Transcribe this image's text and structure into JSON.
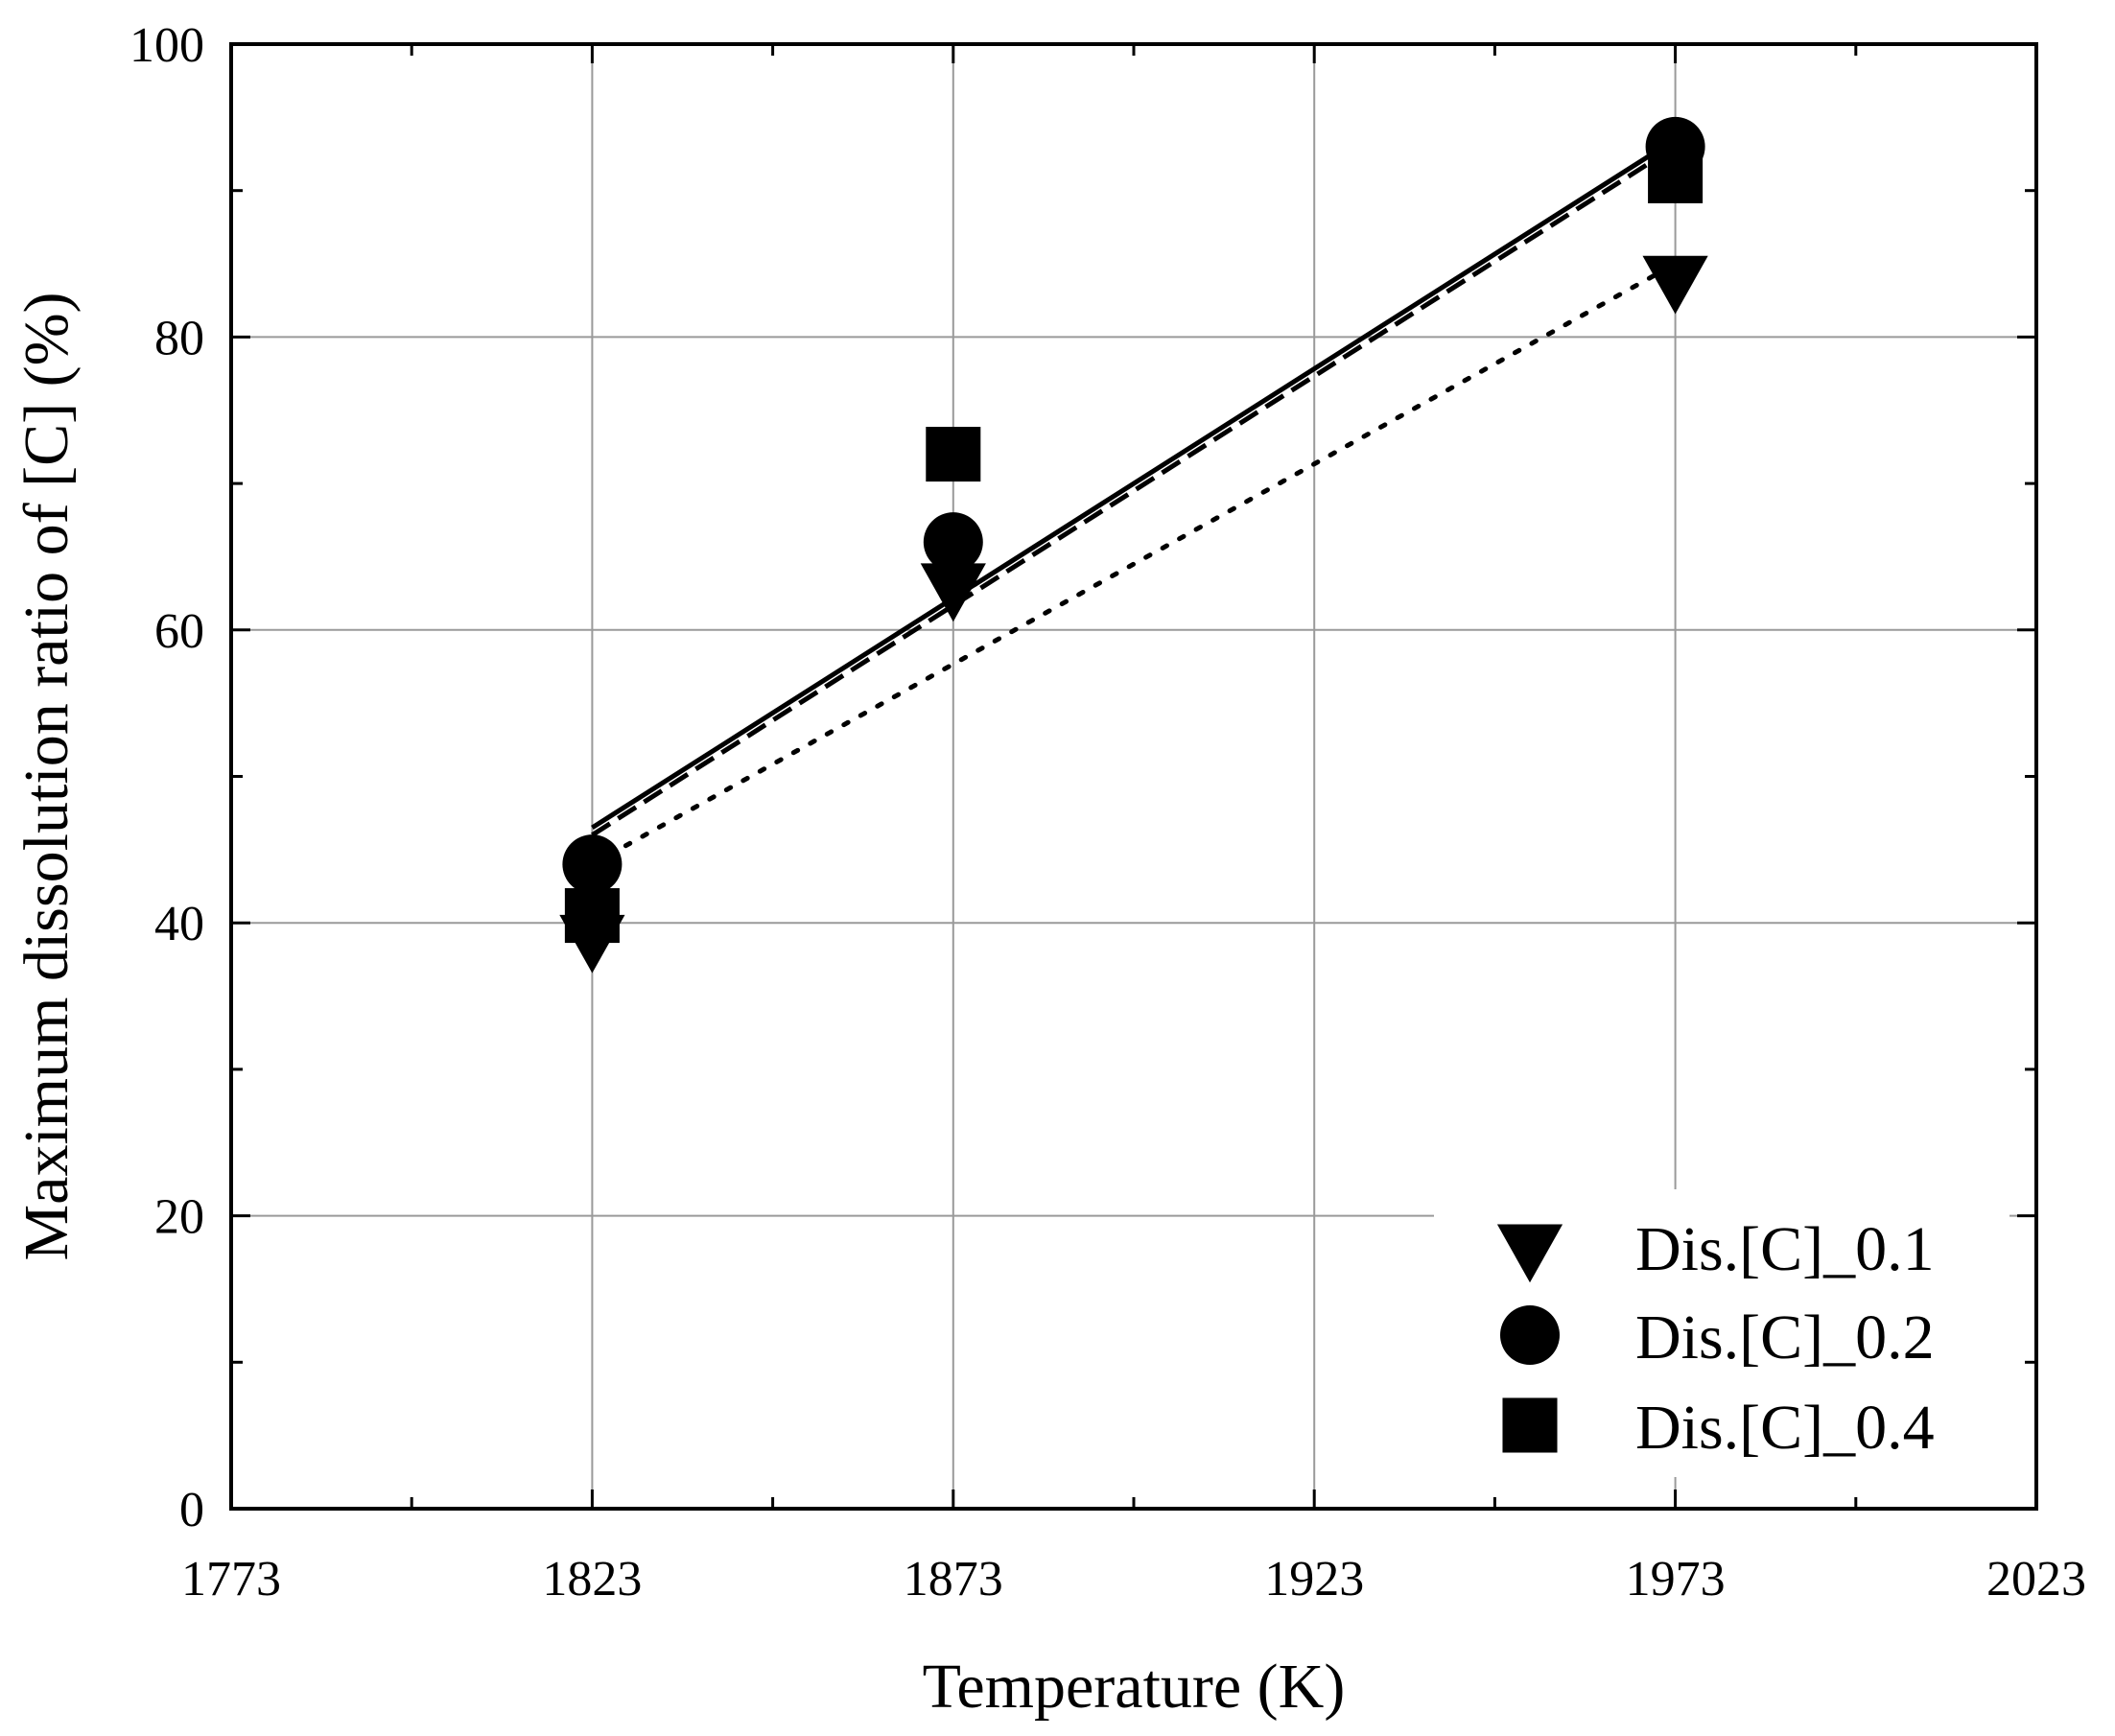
{
  "chart_data": {
    "type": "scatter",
    "xlabel": "Temperature (K)",
    "ylabel": "Maximum dissolution ratio of [C] (%)",
    "xlim": [
      1773,
      2023
    ],
    "ylim": [
      0,
      100
    ],
    "x_ticks": [
      1773,
      1823,
      1873,
      1923,
      1973,
      2023
    ],
    "y_ticks": [
      0,
      20,
      40,
      60,
      80,
      100
    ],
    "x_ticks_minor": [
      1798,
      1848,
      1898,
      1948,
      1998
    ],
    "y_ticks_minor": [
      10,
      30,
      50,
      70,
      90
    ],
    "grid": true,
    "legend_position": "bottom-right",
    "series": [
      {
        "name": "Dis.[C]_0.1",
        "marker": "triangle-down",
        "x": [
          1823,
          1873,
          1973
        ],
        "y": [
          39,
          63,
          84
        ],
        "fit": {
          "style": "dotted",
          "x": [
            1823,
            1973
          ],
          "y": [
            44,
            85
          ]
        }
      },
      {
        "name": "Dis.[C]_0.2",
        "marker": "circle",
        "x": [
          1823,
          1873,
          1973
        ],
        "y": [
          44,
          66,
          93
        ],
        "fit": {
          "style": "solid",
          "x": [
            1823,
            1973
          ],
          "y": [
            46.5,
            93.5
          ]
        }
      },
      {
        "name": "Dis.[C]_0.4",
        "marker": "square",
        "x": [
          1823,
          1873,
          1973
        ],
        "y": [
          40.5,
          72,
          91
        ],
        "fit": {
          "style": "dashed",
          "x": [
            1823,
            1973
          ],
          "y": [
            46,
            93
          ]
        }
      }
    ]
  }
}
